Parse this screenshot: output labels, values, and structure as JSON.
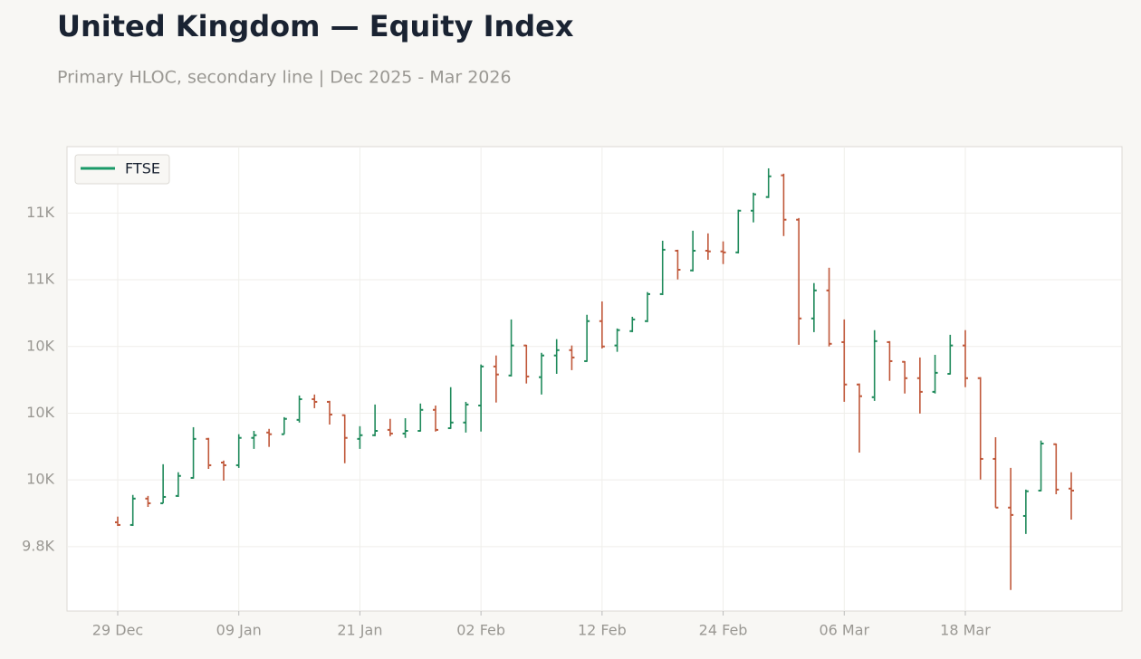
{
  "chart_data": {
    "type": "ohlc",
    "title": "United Kingdom — Equity Index",
    "subtitle": "Primary HLOC, secondary line | Dec 2025 - Mar 2026",
    "categories": [
      "29 Dec",
      null,
      null,
      null,
      null,
      null,
      null,
      null,
      "09 Jan",
      null,
      null,
      null,
      null,
      null,
      null,
      null,
      "21 Jan",
      null,
      null,
      null,
      null,
      null,
      null,
      null,
      "02 Feb",
      null,
      null,
      null,
      null,
      null,
      null,
      null,
      "12 Feb",
      null,
      null,
      null,
      null,
      null,
      null,
      null,
      "24 Feb",
      null,
      null,
      null,
      null,
      null,
      null,
      null,
      "06 Mar",
      null,
      null,
      null,
      null,
      null,
      null,
      null,
      "18 Mar",
      null,
      null,
      null,
      null,
      null,
      null,
      null
    ],
    "series": [
      {
        "name": "FTSE",
        "color": "#1a9a68",
        "up_color": "#1f8a5b",
        "down_color": "#c0583a",
        "open": [
          9873,
          9865,
          9944,
          9930,
          9952,
          10006,
          10123,
          10052,
          10044,
          10126,
          10142,
          10137,
          10180,
          10242,
          10234,
          10194,
          10123,
          10134,
          10150,
          10139,
          10147,
          10210,
          10155,
          10172,
          10223,
          10340,
          10313,
          10403,
          10308,
          10373,
          10389,
          10356,
          10476,
          10403,
          10446,
          10476,
          10557,
          10687,
          10628,
          10687,
          10685,
          10682,
          10807,
          10848,
          10913,
          10780,
          10484,
          10568,
          10413,
          10286,
          10248,
          10413,
          10354,
          10305,
          10264,
          10318,
          10403,
          10305,
          10063,
          9917,
          9892,
          9968,
          10107,
          9974
        ],
        "high": [
          9890,
          9955,
          9952,
          10047,
          10023,
          10158,
          10126,
          10058,
          10137,
          10147,
          10153,
          10188,
          10253,
          10256,
          10237,
          10196,
          10161,
          10226,
          10183,
          10185,
          10229,
          10223,
          10278,
          10234,
          10346,
          10373,
          10481,
          10405,
          10381,
          10422,
          10403,
          10495,
          10535,
          10454,
          10489,
          10563,
          10717,
          10690,
          10747,
          10739,
          10715,
          10810,
          10861,
          10934,
          10918,
          10785,
          10590,
          10636,
          10481,
          10289,
          10449,
          10416,
          10356,
          10367,
          10375,
          10435,
          10449,
          10308,
          10128,
          10036,
          9971,
          10118,
          10109,
          10023
        ],
        "low": [
          9862,
          9862,
          9919,
          9930,
          9949,
          10004,
          10033,
          9998,
          10036,
          10093,
          10099,
          10137,
          10172,
          10215,
          10166,
          10050,
          10093,
          10131,
          10131,
          10126,
          10145,
          10145,
          10153,
          10142,
          10145,
          10232,
          10310,
          10289,
          10256,
          10318,
          10329,
          10354,
          10394,
          10384,
          10443,
          10473,
          10554,
          10601,
          10625,
          10660,
          10647,
          10679,
          10772,
          10845,
          10731,
          10405,
          10443,
          10400,
          10234,
          10082,
          10237,
          10297,
          10259,
          10199,
          10259,
          10316,
          10278,
          10001,
          9917,
          9670,
          9838,
          9966,
          9957,
          9881
        ],
        "close": [
          9865,
          9944,
          9930,
          9949,
          10012,
          10123,
          10044,
          10044,
          10126,
          10134,
          10137,
          10183,
          10242,
          10234,
          10196,
          10126,
          10134,
          10147,
          10139,
          10147,
          10210,
          10150,
          10172,
          10226,
          10340,
          10316,
          10403,
          10310,
          10373,
          10389,
          10367,
          10476,
          10400,
          10449,
          10481,
          10557,
          10690,
          10630,
          10687,
          10685,
          10682,
          10807,
          10856,
          10910,
          10780,
          10484,
          10568,
          10408,
          10286,
          10251,
          10416,
          10356,
          10305,
          10264,
          10321,
          10403,
          10305,
          10063,
          9917,
          9895,
          9966,
          10109,
          9971,
          9968
        ]
      }
    ],
    "ylim": [
      9607,
      10999
    ],
    "yticks": [
      {
        "value": 9800,
        "label": "9.8K"
      },
      {
        "value": 10000,
        "label": "10K"
      },
      {
        "value": 10200,
        "label": "10K"
      },
      {
        "value": 10400,
        "label": "10K"
      },
      {
        "value": 10600,
        "label": "11K"
      },
      {
        "value": 10800,
        "label": "11K"
      }
    ],
    "grid": true,
    "legend": "upper left"
  }
}
